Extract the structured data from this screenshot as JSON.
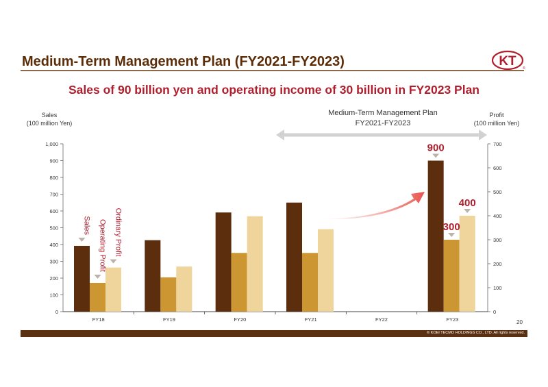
{
  "header": {
    "title": "Medium-Term Management Plan (FY2021-FY2023)",
    "subtitle": "Sales of 90 billion yen and operating income of 30 billion in FY2023 Plan",
    "logo_text": "KT"
  },
  "footer": {
    "page_number": "20",
    "copyright": "© KOEI TECMO HOLDINGS CO., LTD. All rights reserved."
  },
  "colors": {
    "sales": "#5c2e0e",
    "operating_profit": "#cc9733",
    "ordinary_profit": "#efd49b",
    "accent_red": "#b01f2e",
    "arrow": "#e8524a",
    "span_arrow": "#cfcfcf"
  },
  "chart_data": {
    "type": "bar",
    "title": "",
    "categories": [
      "FY18",
      "FY19",
      "FY20",
      "FY21",
      "FY22",
      "FY23"
    ],
    "left_axis": {
      "label_line1": "Sales",
      "label_line2": "(100 million Yen)",
      "range": [
        0,
        1000
      ],
      "ticks": [
        "0",
        "100",
        "200",
        "300",
        "400",
        "500",
        "600",
        "700",
        "800",
        "900",
        "1,000"
      ]
    },
    "right_axis": {
      "label_line1": "Profit",
      "label_line2": "(100 million Yen)",
      "range": [
        0,
        700
      ],
      "ticks": [
        "0",
        "100",
        "200",
        "300",
        "400",
        "500",
        "600",
        "700"
      ]
    },
    "series": [
      {
        "name": "Sales",
        "axis": "left",
        "values": [
          392,
          426,
          591,
          650,
          null,
          900
        ]
      },
      {
        "name": "Operating Profit",
        "axis": "right",
        "values": [
          120,
          143,
          245,
          245,
          null,
          300
        ]
      },
      {
        "name": "Ordinary Profit",
        "axis": "right",
        "values": [
          184,
          188,
          398,
          344,
          null,
          400
        ]
      }
    ],
    "plan_span": {
      "label_line1": "Medium-Term Management Plan",
      "label_line2": "FY2021-FY2023"
    },
    "callouts": [
      {
        "text": "900",
        "series": "Sales",
        "category": "FY23"
      },
      {
        "text": "300",
        "series": "Operating Profit",
        "category": "FY23"
      },
      {
        "text": "400",
        "series": "Ordinary Profit",
        "category": "FY23"
      }
    ]
  }
}
